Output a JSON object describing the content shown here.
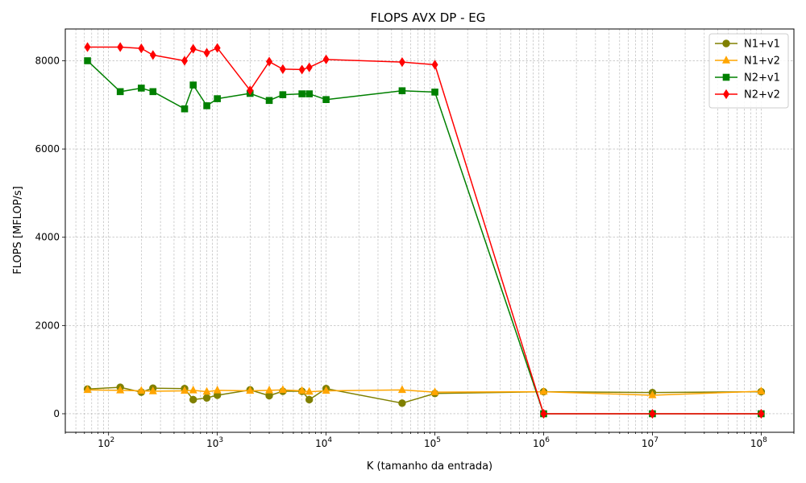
{
  "chart_data": {
    "type": "line",
    "title": "FLOPS AVX DP - EG",
    "xlabel": "K (tamanho da entrada)",
    "ylabel": "FLOPS [MFLOP/s]",
    "x_scale": "log",
    "xlim": [
      40,
      200000000
    ],
    "ylim": [
      -420,
      8720
    ],
    "x_ticks": [
      100,
      1000,
      10000,
      100000,
      1000000,
      10000000,
      100000000
    ],
    "x_tick_labels": [
      {
        "base": "10",
        "exp": "2"
      },
      {
        "base": "10",
        "exp": "3"
      },
      {
        "base": "10",
        "exp": "4"
      },
      {
        "base": "10",
        "exp": "5"
      },
      {
        "base": "10",
        "exp": "6"
      },
      {
        "base": "10",
        "exp": "7"
      },
      {
        "base": "10",
        "exp": "8"
      }
    ],
    "y_ticks": [
      0,
      2000,
      4000,
      6000,
      8000
    ],
    "y_tick_labels": [
      "0",
      "2000",
      "4000",
      "6000",
      "8000"
    ],
    "grid": true,
    "legend_position": "top-right",
    "x": [
      64,
      128,
      200,
      256,
      500,
      600,
      800,
      1000,
      2000,
      3000,
      4000,
      6000,
      7000,
      10000,
      50000,
      100000,
      1000000,
      10000000,
      100000000
    ],
    "series": [
      {
        "name": "N1+v1",
        "color": "#808000",
        "marker": "circle",
        "x": [
          64,
          128,
          200,
          256,
          500,
          600,
          800,
          1000,
          2000,
          3000,
          4000,
          6000,
          7000,
          10000,
          50000,
          100000,
          1000000,
          10000000,
          100000000
        ],
        "values": [
          560,
          600,
          490,
          580,
          570,
          320,
          360,
          420,
          540,
          410,
          510,
          510,
          320,
          570,
          240,
          460,
          500,
          480,
          500
        ]
      },
      {
        "name": "N1+v2",
        "color": "#ffa500",
        "marker": "triangle",
        "x": [
          64,
          128,
          200,
          256,
          500,
          600,
          800,
          1000,
          2000,
          3000,
          4000,
          6000,
          7000,
          10000,
          50000,
          100000,
          1000000,
          10000000,
          100000000
        ],
        "values": [
          540,
          530,
          520,
          510,
          520,
          530,
          500,
          530,
          520,
          530,
          540,
          520,
          500,
          520,
          540,
          490,
          500,
          420,
          510
        ]
      },
      {
        "name": "N2+v1",
        "color": "#008000",
        "marker": "square",
        "x": [
          64,
          128,
          200,
          256,
          500,
          600,
          800,
          1000,
          2000,
          3000,
          4000,
          6000,
          7000,
          10000,
          50000,
          100000,
          1000000,
          10000000,
          100000000
        ],
        "values": [
          8000,
          7300,
          7380,
          7300,
          6910,
          7450,
          6980,
          7140,
          7260,
          7100,
          7230,
          7250,
          7250,
          7120,
          7320,
          7290,
          0,
          0,
          0
        ]
      },
      {
        "name": "N2+v2",
        "color": "#ff0000",
        "marker": "diamond",
        "x": [
          64,
          128,
          200,
          256,
          500,
          600,
          800,
          1000,
          2000,
          3000,
          4000,
          6000,
          7000,
          10000,
          50000,
          100000,
          1000000,
          10000000,
          100000000
        ],
        "values": [
          8310,
          8310,
          8280,
          8130,
          8000,
          8270,
          8180,
          8290,
          7330,
          7980,
          7810,
          7800,
          7850,
          8030,
          7970,
          7910,
          0,
          0,
          0
        ]
      }
    ]
  }
}
